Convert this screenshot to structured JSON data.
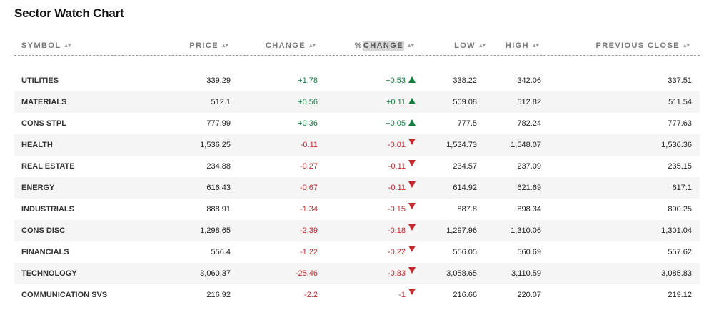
{
  "title": "Sector Watch Chart",
  "columns": {
    "symbol": "SYMBOL",
    "price": "PRICE",
    "change": "CHANGE",
    "pct_prefix": "%",
    "pct_label": "CHANGE",
    "low": "LOW",
    "high": "HIGH",
    "prev_close": "PREVIOUS CLOSE",
    "sort_glyph": "▴▾"
  },
  "colors": {
    "positive": "#137c3f",
    "negative": "#c8282e"
  },
  "rows": [
    {
      "symbol": "UTILITIES",
      "price": "339.29",
      "change": "+1.78",
      "pct": "+0.53",
      "direction": "up",
      "low": "338.22",
      "high": "342.06",
      "prev": "337.51"
    },
    {
      "symbol": "MATERIALS",
      "price": "512.1",
      "change": "+0.56",
      "pct": "+0.11",
      "direction": "up",
      "low": "509.08",
      "high": "512.82",
      "prev": "511.54"
    },
    {
      "symbol": "CONS STPL",
      "price": "777.99",
      "change": "+0.36",
      "pct": "+0.05",
      "direction": "up",
      "low": "777.5",
      "high": "782.24",
      "prev": "777.63"
    },
    {
      "symbol": "HEALTH",
      "price": "1,536.25",
      "change": "-0.11",
      "pct": "-0.01",
      "direction": "down",
      "low": "1,534.73",
      "high": "1,548.07",
      "prev": "1,536.36"
    },
    {
      "symbol": "REAL ESTATE",
      "price": "234.88",
      "change": "-0.27",
      "pct": "-0.11",
      "direction": "down",
      "low": "234.57",
      "high": "237.09",
      "prev": "235.15"
    },
    {
      "symbol": "ENERGY",
      "price": "616.43",
      "change": "-0.67",
      "pct": "-0.11",
      "direction": "down",
      "low": "614.92",
      "high": "621.69",
      "prev": "617.1"
    },
    {
      "symbol": "INDUSTRIALS",
      "price": "888.91",
      "change": "-1.34",
      "pct": "-0.15",
      "direction": "down",
      "low": "887.8",
      "high": "898.34",
      "prev": "890.25"
    },
    {
      "symbol": "CONS DISC",
      "price": "1,298.65",
      "change": "-2.39",
      "pct": "-0.18",
      "direction": "down",
      "low": "1,297.96",
      "high": "1,310.06",
      "prev": "1,301.04"
    },
    {
      "symbol": "FINANCIALS",
      "price": "556.4",
      "change": "-1.22",
      "pct": "-0.22",
      "direction": "down",
      "low": "556.05",
      "high": "560.69",
      "prev": "557.62"
    },
    {
      "symbol": "TECHNOLOGY",
      "price": "3,060.37",
      "change": "-25.46",
      "pct": "-0.83",
      "direction": "down",
      "low": "3,058.65",
      "high": "3,110.59",
      "prev": "3,085.83"
    },
    {
      "symbol": "COMMUNICATION SVS",
      "price": "216.92",
      "change": "-2.2",
      "pct": "-1",
      "direction": "down",
      "low": "216.66",
      "high": "220.07",
      "prev": "219.12"
    }
  ]
}
